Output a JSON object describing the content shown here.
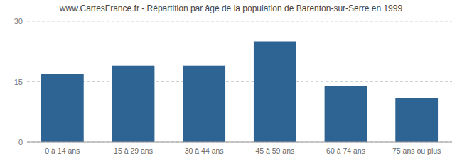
{
  "chart_data": {
    "type": "bar",
    "title": "www.CartesFrance.fr - Répartition par âge de la population de Barenton-sur-Serre en 1999",
    "categories": [
      "0 à 14 ans",
      "15 à 29 ans",
      "30 à 44 ans",
      "45 à 59 ans",
      "60 à 74 ans",
      "75 ans ou plus"
    ],
    "values": [
      17,
      19,
      19,
      25,
      14,
      11
    ],
    "color": "#2e6494",
    "ylim": [
      0,
      30
    ],
    "yticks": [
      0,
      15,
      30
    ],
    "grid": true
  }
}
